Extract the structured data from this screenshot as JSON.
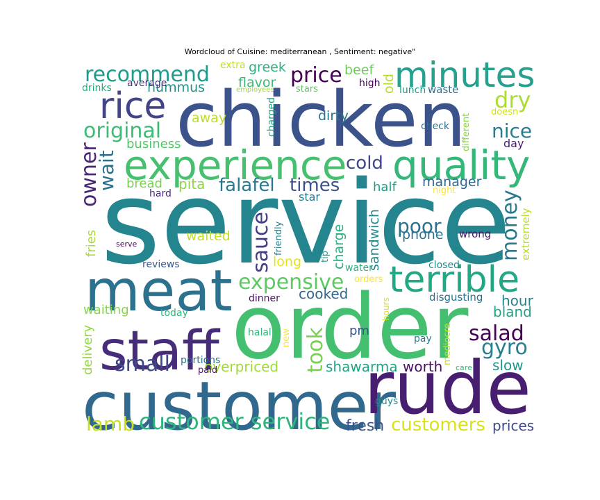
{
  "chart_data": {
    "type": "wordcloud",
    "title": "Wordcloud of Cuisine: mediterranean , Sentiment: negative\"",
    "words": [
      {
        "text": "service",
        "weight": 1.0,
        "color": "#25858e"
      },
      {
        "text": "order",
        "weight": 0.78,
        "color": "#44bf70"
      },
      {
        "text": "chicken",
        "weight": 0.72,
        "color": "#3b528b"
      },
      {
        "text": "customer",
        "weight": 0.62,
        "color": "#31688e"
      },
      {
        "text": "rude",
        "weight": 0.6,
        "color": "#481f70"
      },
      {
        "text": "meat",
        "weight": 0.5,
        "color": "#2c718e"
      },
      {
        "text": "staff",
        "weight": 0.48,
        "color": "#472c7a"
      },
      {
        "text": "experience",
        "weight": 0.4,
        "color": "#46c06f"
      },
      {
        "text": "quality",
        "weight": 0.4,
        "color": "#35b779"
      },
      {
        "text": "terrible",
        "weight": 0.36,
        "color": "#22a884"
      },
      {
        "text": "minutes",
        "weight": 0.34,
        "color": "#25a18e"
      },
      {
        "text": "rice",
        "weight": 0.34,
        "color": "#414487"
      },
      {
        "text": "customer service",
        "weight": 0.26,
        "color": "#2fb47c"
      },
      {
        "text": "recommend",
        "weight": 0.25,
        "color": "#1e9b8a"
      },
      {
        "text": "original",
        "weight": 0.24,
        "color": "#3dbc74"
      },
      {
        "text": "salad",
        "weight": 0.24,
        "color": "#440154"
      },
      {
        "text": "gyro",
        "weight": 0.24,
        "color": "#277f8e"
      },
      {
        "text": "price",
        "weight": 0.24,
        "color": "#440154"
      },
      {
        "text": "dry",
        "weight": 0.24,
        "color": "#addc30"
      },
      {
        "text": "sauce",
        "weight": 0.24,
        "color": "#433e85"
      },
      {
        "text": "expensive",
        "weight": 0.24,
        "color": "#5ec962"
      },
      {
        "text": "took",
        "weight": 0.22,
        "color": "#7ad151"
      },
      {
        "text": "money",
        "weight": 0.22,
        "color": "#2a788e"
      },
      {
        "text": "lamb",
        "weight": 0.22,
        "color": "#c8e020"
      },
      {
        "text": "owner",
        "weight": 0.22,
        "color": "#482475"
      },
      {
        "text": "wait",
        "weight": 0.22,
        "color": "#2d708e"
      },
      {
        "text": "small",
        "weight": 0.22,
        "color": "#3e4989"
      },
      {
        "text": "poor",
        "weight": 0.22,
        "color": "#2c728e"
      },
      {
        "text": "nice",
        "weight": 0.2,
        "color": "#287d8e"
      },
      {
        "text": "cold",
        "weight": 0.2,
        "color": "#3f4788"
      },
      {
        "text": "falafel",
        "weight": 0.2,
        "color": "#2a788e"
      },
      {
        "text": "times",
        "weight": 0.2,
        "color": "#3b528b"
      },
      {
        "text": "customers",
        "weight": 0.19,
        "color": "#d8e219"
      },
      {
        "text": "fresh",
        "weight": 0.17,
        "color": "#3b528b"
      },
      {
        "text": "overpriced",
        "weight": 0.17,
        "color": "#a0da39"
      },
      {
        "text": "shawarma",
        "weight": 0.17,
        "color": "#20a386"
      },
      {
        "text": "worth",
        "weight": 0.17,
        "color": "#471063"
      },
      {
        "text": "cooked",
        "weight": 0.17,
        "color": "#31688e"
      },
      {
        "text": "prices",
        "weight": 0.17,
        "color": "#3e4a89"
      },
      {
        "text": "slow",
        "weight": 0.17,
        "color": "#1f988b"
      },
      {
        "text": "hour",
        "weight": 0.17,
        "color": "#26828e"
      },
      {
        "text": "bland",
        "weight": 0.17,
        "color": "#1fa188"
      },
      {
        "text": "hummus",
        "weight": 0.15,
        "color": "#21918c"
      },
      {
        "text": "greek",
        "weight": 0.15,
        "color": "#2db27d"
      },
      {
        "text": "flavor",
        "weight": 0.15,
        "color": "#3aba76"
      },
      {
        "text": "beef",
        "weight": 0.15,
        "color": "#6ece58"
      },
      {
        "text": "old",
        "weight": 0.15,
        "color": "#b5de2b"
      },
      {
        "text": "business",
        "weight": 0.15,
        "color": "#52c569"
      },
      {
        "text": "away",
        "weight": 0.15,
        "color": "#bddf26"
      },
      {
        "text": "dirty",
        "weight": 0.15,
        "color": "#2a788e"
      },
      {
        "text": "bread",
        "weight": 0.15,
        "color": "#7ad151"
      },
      {
        "text": "pita",
        "weight": 0.15,
        "color": "#8fd744"
      },
      {
        "text": "manager",
        "weight": 0.15,
        "color": "#31688e"
      },
      {
        "text": "half",
        "weight": 0.15,
        "color": "#1f9e89"
      },
      {
        "text": "waited",
        "weight": 0.15,
        "color": "#c2df23"
      },
      {
        "text": "long",
        "weight": 0.15,
        "color": "#e5e419"
      },
      {
        "text": "phone",
        "weight": 0.15,
        "color": "#2c728e"
      },
      {
        "text": "sandwich",
        "weight": 0.15,
        "color": "#24868e"
      },
      {
        "text": "charge",
        "weight": 0.15,
        "color": "#27ad81"
      },
      {
        "text": "extremely",
        "weight": 0.13,
        "color": "#b5de2b"
      },
      {
        "text": "waiting",
        "weight": 0.13,
        "color": "#86d549"
      },
      {
        "text": "fries",
        "weight": 0.13,
        "color": "#a8db34"
      },
      {
        "text": "delivery",
        "weight": 0.13,
        "color": "#93d741"
      },
      {
        "text": "pm",
        "weight": 0.13,
        "color": "#3b528b"
      },
      {
        "text": "star",
        "weight": 0.13,
        "color": "#2a788e"
      },
      {
        "text": "day",
        "weight": 0.12,
        "color": "#481d6f"
      },
      {
        "text": "wrong",
        "weight": 0.12,
        "color": "#481668"
      },
      {
        "text": "disgusting",
        "weight": 0.12,
        "color": "#2e6e8e"
      },
      {
        "text": "closed",
        "weight": 0.12,
        "color": "#228c8d"
      },
      {
        "text": "dinner",
        "weight": 0.12,
        "color": "#471063"
      },
      {
        "text": "reviews",
        "weight": 0.12,
        "color": "#39568c"
      },
      {
        "text": "portions",
        "weight": 0.12,
        "color": "#2d708e"
      },
      {
        "text": "water",
        "weight": 0.12,
        "color": "#2ab07f"
      },
      {
        "text": "hard",
        "weight": 0.12,
        "color": "#482878"
      },
      {
        "text": "today",
        "weight": 0.12,
        "color": "#2fb47c"
      },
      {
        "text": "halal",
        "weight": 0.12,
        "color": "#34b679"
      },
      {
        "text": "paid",
        "weight": 0.11,
        "color": "#481467"
      },
      {
        "text": "pay",
        "weight": 0.11,
        "color": "#297b8e"
      },
      {
        "text": "guys",
        "weight": 0.11,
        "color": "#23898e"
      },
      {
        "text": "check",
        "weight": 0.11,
        "color": "#2d708e"
      },
      {
        "text": "lunch",
        "weight": 0.11,
        "color": "#1f988b"
      },
      {
        "text": "waste",
        "weight": 0.11,
        "color": "#2d708e"
      },
      {
        "text": "drinks",
        "weight": 0.11,
        "color": "#25ab82"
      },
      {
        "text": "average",
        "weight": 0.11,
        "color": "#46337e"
      },
      {
        "text": "high",
        "weight": 0.11,
        "color": "#440154"
      },
      {
        "text": "stars",
        "weight": 0.11,
        "color": "#5ec962"
      },
      {
        "text": "extra",
        "weight": 0.11,
        "color": "#c2df23"
      },
      {
        "text": "different",
        "weight": 0.11,
        "color": "#8bd646"
      },
      {
        "text": "charged",
        "weight": 0.11,
        "color": "#20a486"
      },
      {
        "text": "doesn",
        "weight": 0.1,
        "color": "#d2e21b"
      },
      {
        "text": "night",
        "weight": 0.1,
        "color": "#fde725"
      },
      {
        "text": "friendly",
        "weight": 0.1,
        "color": "#25838e"
      },
      {
        "text": "tip",
        "weight": 0.1,
        "color": "#1f988b"
      },
      {
        "text": "orders",
        "weight": 0.1,
        "color": "#fde725"
      },
      {
        "text": "hours",
        "weight": 0.1,
        "color": "#d8e219"
      },
      {
        "text": "new",
        "weight": 0.1,
        "color": "#fde725"
      },
      {
        "text": "mediocre",
        "weight": 0.1,
        "color": "#c8e020"
      },
      {
        "text": "care",
        "weight": 0.09,
        "color": "#35b779"
      },
      {
        "text": "employees",
        "weight": 0.09,
        "color": "#a0da39"
      },
      {
        "text": "serve",
        "weight": 0.09,
        "color": "#440154"
      }
    ]
  }
}
